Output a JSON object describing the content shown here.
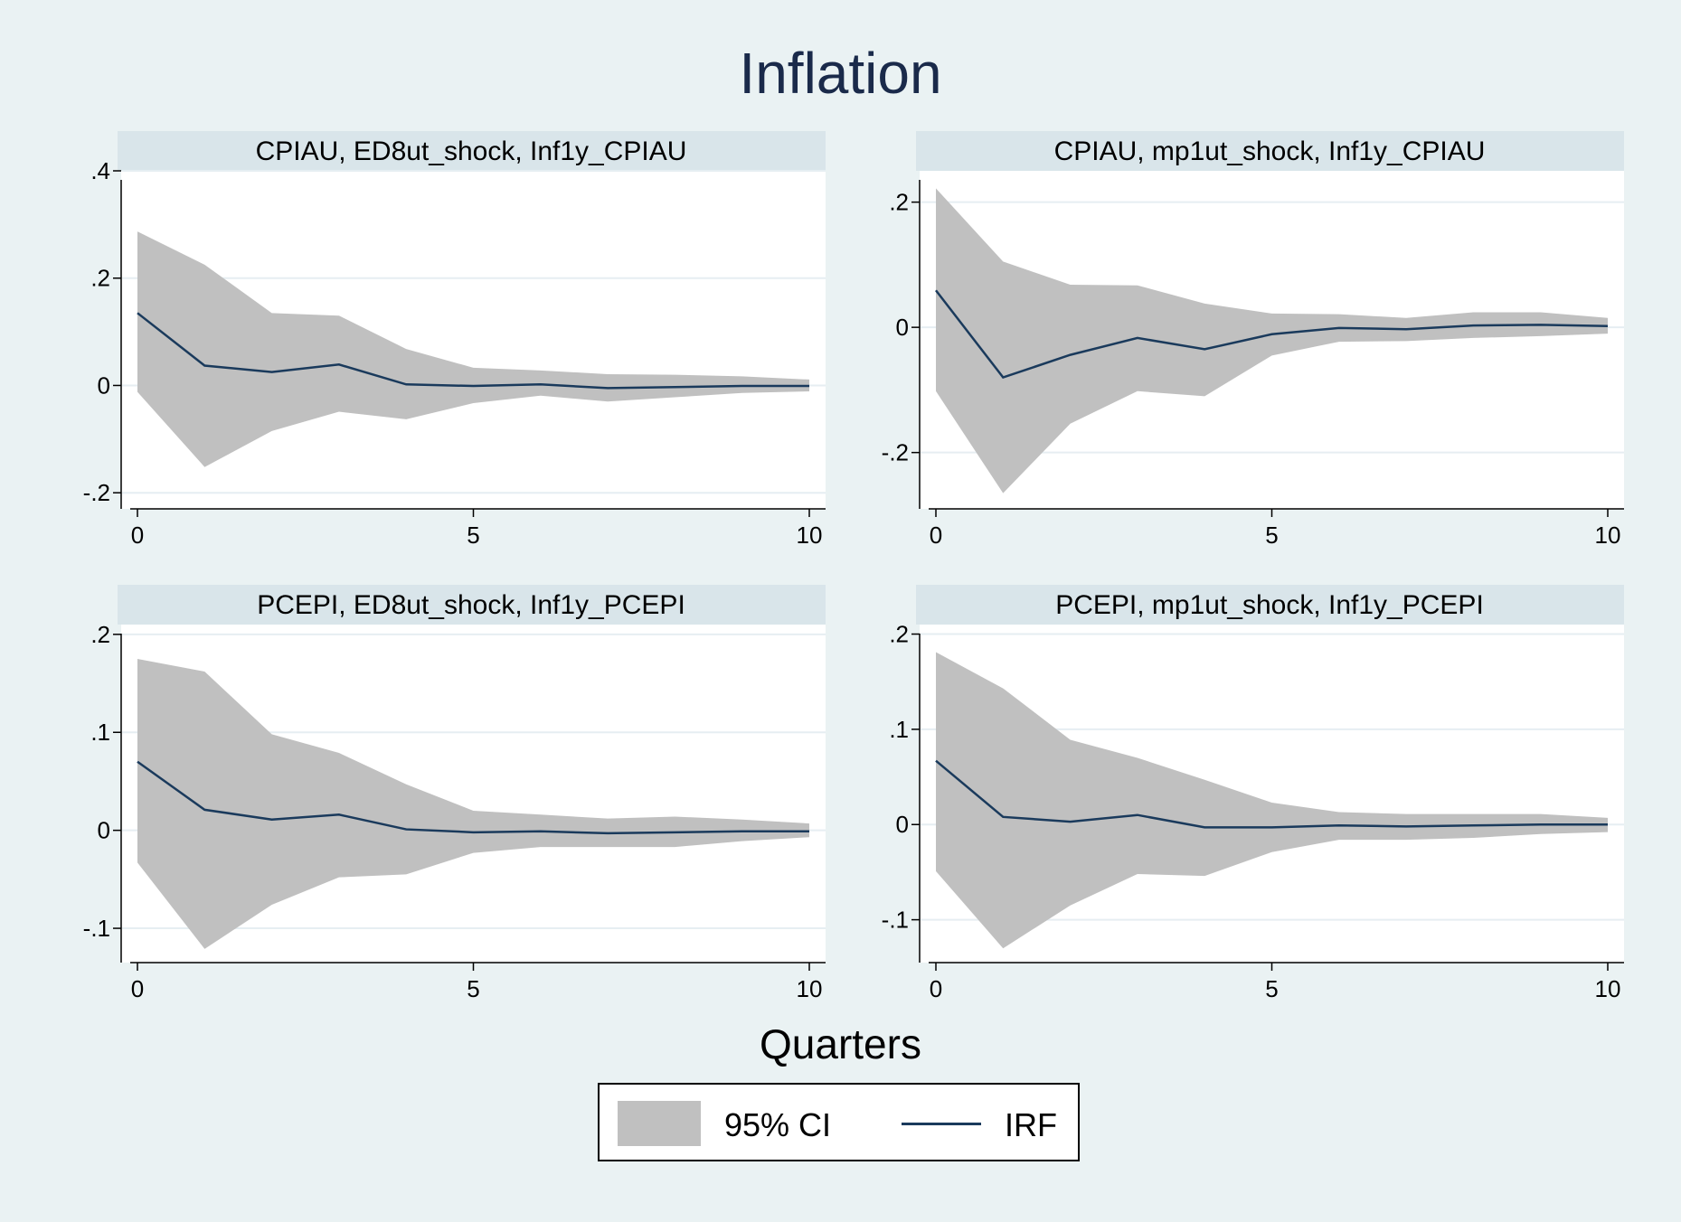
{
  "colors": {
    "background": "#eaf2f3",
    "strip": "#d9e5ea",
    "plot_bg": "#ffffff",
    "ci_fill": "#c0c0c0",
    "irf_line": "#1a3a5c",
    "gridline": "#e6eef2"
  },
  "title": "Inflation",
  "legend": {
    "ci_label": "95% CI",
    "irf_label": "IRF",
    "placement": "bottom-center"
  },
  "chart_data": [
    {
      "type": "area",
      "title": "CPIAU, ED8ut_shock, Inf1y_CPIAU",
      "xlabel": "Quarters",
      "xlim": [
        0,
        10
      ],
      "ylim": [
        -0.23,
        0.4
      ],
      "x_ticks": [
        0,
        5,
        10
      ],
      "x_tick_labels": [
        "0",
        "5",
        "10"
      ],
      "y_ticks": [
        -0.2,
        0,
        0.2,
        0.4
      ],
      "y_tick_labels": [
        "-.2",
        "0",
        ".2",
        ".4"
      ],
      "grid": true,
      "x": [
        0,
        1,
        2,
        3,
        4,
        5,
        6,
        7,
        8,
        9,
        10
      ],
      "series": [
        {
          "name": "IRF",
          "values": [
            0.135,
            0.037,
            0.025,
            0.039,
            0.002,
            -0.001,
            0.002,
            -0.005,
            -0.003,
            -0.001,
            -0.001
          ]
        },
        {
          "name": "95% CI upper",
          "values": [
            0.287,
            0.225,
            0.135,
            0.13,
            0.068,
            0.033,
            0.028,
            0.021,
            0.02,
            0.017,
            0.011
          ]
        },
        {
          "name": "95% CI lower",
          "values": [
            -0.012,
            -0.152,
            -0.085,
            -0.049,
            -0.063,
            -0.033,
            -0.019,
            -0.03,
            -0.022,
            -0.014,
            -0.011
          ]
        }
      ]
    },
    {
      "type": "area",
      "title": "CPIAU, mp1ut_shock, Inf1y_CPIAU",
      "xlabel": "Quarters",
      "xlim": [
        0,
        10
      ],
      "ylim": [
        -0.29,
        0.25
      ],
      "x_ticks": [
        0,
        5,
        10
      ],
      "x_tick_labels": [
        "0",
        "5",
        "10"
      ],
      "y_ticks": [
        -0.2,
        0,
        0.2
      ],
      "y_tick_labels": [
        "-.2",
        "0",
        ".2"
      ],
      "grid": true,
      "x": [
        0,
        1,
        2,
        3,
        4,
        5,
        6,
        7,
        8,
        9,
        10
      ],
      "series": [
        {
          "name": "IRF",
          "values": [
            0.059,
            -0.08,
            -0.044,
            -0.017,
            -0.035,
            -0.011,
            -0.001,
            -0.003,
            0.003,
            0.004,
            0.002
          ]
        },
        {
          "name": "95% CI upper",
          "values": [
            0.222,
            0.105,
            0.068,
            0.067,
            0.038,
            0.022,
            0.021,
            0.015,
            0.024,
            0.024,
            0.015
          ]
        },
        {
          "name": "95% CI lower",
          "values": [
            -0.102,
            -0.265,
            -0.154,
            -0.102,
            -0.11,
            -0.045,
            -0.023,
            -0.022,
            -0.017,
            -0.014,
            -0.01
          ]
        }
      ]
    },
    {
      "type": "area",
      "title": "PCEPI, ED8ut_shock, Inf1y_PCEPI",
      "xlabel": "Quarters",
      "xlim": [
        0,
        10
      ],
      "ylim": [
        -0.135,
        0.21
      ],
      "x_ticks": [
        0,
        5,
        10
      ],
      "x_tick_labels": [
        "0",
        "5",
        "10"
      ],
      "y_ticks": [
        -0.1,
        0,
        0.1,
        0.2
      ],
      "y_tick_labels": [
        "-.1",
        "0",
        ".1",
        ".2"
      ],
      "grid": true,
      "x": [
        0,
        1,
        2,
        3,
        4,
        5,
        6,
        7,
        8,
        9,
        10
      ],
      "series": [
        {
          "name": "IRF",
          "values": [
            0.07,
            0.021,
            0.011,
            0.016,
            0.001,
            -0.002,
            -0.001,
            -0.003,
            -0.002,
            -0.001,
            -0.001
          ]
        },
        {
          "name": "95% CI upper",
          "values": [
            0.175,
            0.162,
            0.098,
            0.079,
            0.047,
            0.02,
            0.016,
            0.012,
            0.014,
            0.011,
            0.007
          ]
        },
        {
          "name": "95% CI lower",
          "values": [
            -0.033,
            -0.121,
            -0.076,
            -0.048,
            -0.045,
            -0.023,
            -0.017,
            -0.017,
            -0.017,
            -0.011,
            -0.007
          ]
        }
      ]
    },
    {
      "type": "area",
      "title": "PCEPI, mp1ut_shock, Inf1y_PCEPI",
      "xlabel": "Quarters",
      "xlim": [
        0,
        10
      ],
      "ylim": [
        -0.145,
        0.21
      ],
      "x_ticks": [
        0,
        5,
        10
      ],
      "x_tick_labels": [
        "0",
        "5",
        "10"
      ],
      "y_ticks": [
        -0.1,
        0,
        0.1,
        0.2
      ],
      "y_tick_labels": [
        "-.1",
        "0",
        ".1",
        ".2"
      ],
      "grid": true,
      "x": [
        0,
        1,
        2,
        3,
        4,
        5,
        6,
        7,
        8,
        9,
        10
      ],
      "series": [
        {
          "name": "IRF",
          "values": [
            0.067,
            0.008,
            0.003,
            0.01,
            -0.003,
            -0.003,
            -0.001,
            -0.002,
            -0.001,
            0,
            0
          ]
        },
        {
          "name": "95% CI upper",
          "values": [
            0.181,
            0.143,
            0.089,
            0.07,
            0.047,
            0.023,
            0.013,
            0.011,
            0.011,
            0.011,
            0.007
          ]
        },
        {
          "name": "95% CI lower",
          "values": [
            -0.049,
            -0.13,
            -0.085,
            -0.052,
            -0.054,
            -0.029,
            -0.016,
            -0.016,
            -0.014,
            -0.01,
            -0.008
          ]
        }
      ]
    }
  ]
}
